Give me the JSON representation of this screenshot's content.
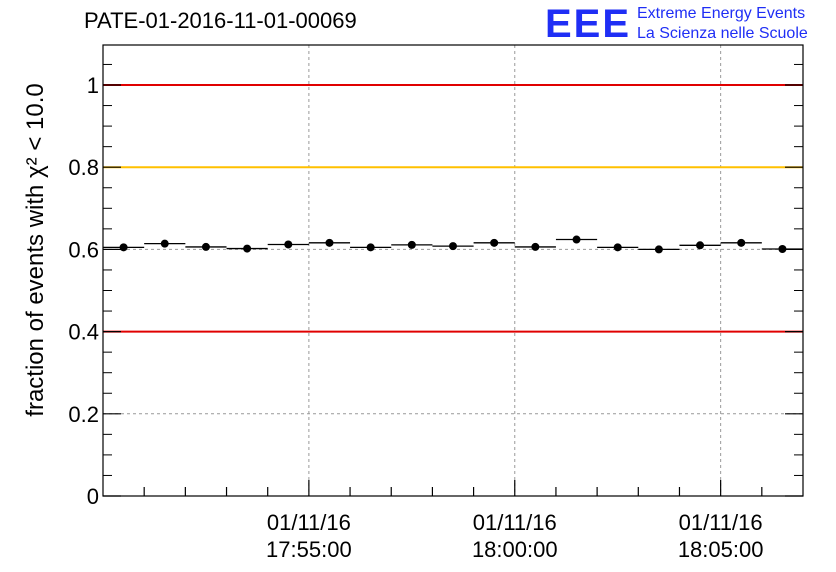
{
  "title": "PATE-01-2016-11-01-00069",
  "logo": {
    "mark": "EEE",
    "line1": "Extreme Energy Events",
    "line2": "La Scienza nelle Scuole"
  },
  "chart_data": {
    "type": "scatter",
    "title": "PATE-01-2016-11-01-00069",
    "ylabel": "fraction of events with χ² < 10.0",
    "xlabel": "",
    "ylim": [
      0,
      1.1
    ],
    "yticks": [
      0,
      0.2,
      0.4,
      0.6,
      0.8,
      1
    ],
    "ytick_labels": [
      "0",
      "0.2",
      "0.4",
      "0.6",
      "0.8",
      "1"
    ],
    "xlim_minutes": [
      0,
      17
    ],
    "xticks": [
      {
        "minute": 5,
        "date": "01/11/16",
        "time": "17:55:00"
      },
      {
        "minute": 10,
        "date": "01/11/16",
        "time": "18:00:00"
      },
      {
        "minute": 15,
        "date": "01/11/16",
        "time": "18:05:00"
      }
    ],
    "grid": true,
    "reference_lines": [
      {
        "y": 1.0,
        "color": "#e00000"
      },
      {
        "y": 0.8,
        "color": "#ffc000"
      },
      {
        "y": 0.4,
        "color": "#e00000"
      }
    ],
    "series": [
      {
        "marker_color": "#000000",
        "points": [
          0.605,
          0.614,
          0.606,
          0.602,
          0.612,
          0.616,
          0.605,
          0.611,
          0.608,
          0.616,
          0.606,
          0.624,
          0.605,
          0.6,
          0.61,
          0.616,
          0.601
        ]
      }
    ]
  }
}
